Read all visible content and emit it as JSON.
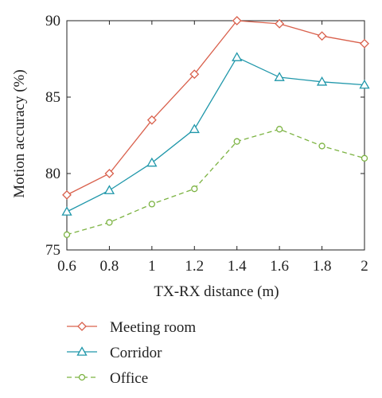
{
  "chart_data": {
    "type": "line",
    "xlabel": "TX-RX distance (m)",
    "ylabel": "Motion accuracy (%)",
    "xlim": [
      0.6,
      2.0
    ],
    "ylim": [
      75,
      90
    ],
    "xticks": [
      0.6,
      0.8,
      1.0,
      1.2,
      1.4,
      1.6,
      1.8,
      2.0
    ],
    "xtick_labels": [
      "0.6",
      "0.8",
      "1",
      "1.2",
      "1.4",
      "1.6",
      "1.8",
      "2"
    ],
    "yticks": [
      75,
      80,
      85,
      90
    ],
    "ytick_labels": [
      "75",
      "80",
      "85",
      "90"
    ],
    "grid": false,
    "legend_position": "below",
    "x": [
      0.6,
      0.8,
      1.0,
      1.2,
      1.4,
      1.6,
      1.8,
      2.0
    ],
    "series": [
      {
        "name": "Meeting room",
        "values": [
          78.6,
          80.0,
          83.5,
          86.5,
          90.0,
          89.8,
          89.0,
          88.5
        ],
        "color": "#d9604c",
        "marker": "diamond",
        "line": "solid"
      },
      {
        "name": "Corridor",
        "values": [
          77.5,
          78.9,
          80.7,
          82.9,
          87.6,
          86.3,
          86.0,
          85.8
        ],
        "color": "#1f97aa",
        "marker": "triangle",
        "line": "solid"
      },
      {
        "name": "Office",
        "values": [
          76.0,
          76.8,
          78.0,
          79.0,
          82.1,
          82.9,
          81.8,
          81.0
        ],
        "color": "#7cb342",
        "marker": "circle",
        "line": "dashed"
      }
    ]
  }
}
